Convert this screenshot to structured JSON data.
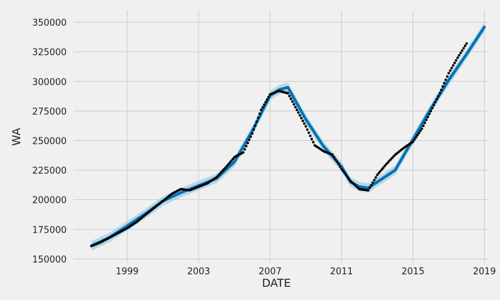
{
  "chart_data": {
    "type": "line",
    "title": "",
    "xlabel": "DATE",
    "ylabel": "WA",
    "xlim": [
      1996.0,
      2019.25
    ],
    "ylim": [
      147000,
      360000
    ],
    "grid": true,
    "legend": "none",
    "x_ticks": [
      {
        "value": 1999,
        "label": "1999"
      },
      {
        "value": 2003,
        "label": "2003"
      },
      {
        "value": 2007,
        "label": "2007"
      },
      {
        "value": 2011,
        "label": "2011"
      },
      {
        "value": 2015,
        "label": "2015"
      },
      {
        "value": 2019,
        "label": "2019"
      }
    ],
    "y_ticks": [
      {
        "value": 150000,
        "label": "150000"
      },
      {
        "value": 175000,
        "label": "175000"
      },
      {
        "value": 200000,
        "label": "200000"
      },
      {
        "value": 225000,
        "label": "225000"
      },
      {
        "value": 250000,
        "label": "250000"
      },
      {
        "value": 275000,
        "label": "275000"
      },
      {
        "value": 300000,
        "label": "300000"
      },
      {
        "value": 325000,
        "label": "325000"
      },
      {
        "value": 350000,
        "label": "350000"
      }
    ],
    "colors": {
      "background": "#f0f0f0",
      "grid": "#cbcbcb",
      "forecast_line": "#0072b2",
      "uncertainty_band": "#a6cfe6",
      "observations": "#000000"
    },
    "series": [
      {
        "kind": "forecast",
        "x": [
          1997.0,
          1998.0,
          1999.0,
          2000.0,
          2001.0,
          2002.0,
          2003.0,
          2004.0,
          2005.0,
          2006.0,
          2006.5,
          2007.0,
          2007.5,
          2008.0,
          2009.0,
          2010.0,
          2011.0,
          2011.5,
          2012.0,
          2012.5,
          2013.0,
          2014.0,
          2015.0,
          2016.0,
          2017.0,
          2018.0,
          2019.0
        ],
        "yhat": [
          161000,
          168000,
          178000,
          188000,
          199000,
          206000,
          212000,
          218000,
          232000,
          258000,
          273000,
          288000,
          293000,
          295000,
          268000,
          245000,
          228000,
          215000,
          211000,
          210000,
          215000,
          225000,
          251000,
          277000,
          301000,
          323000,
          346000
        ],
        "yhat_lower": [
          157000,
          164000,
          174000,
          184000,
          195000,
          202000,
          208000,
          214000,
          228000,
          254000,
          269000,
          284000,
          289000,
          291000,
          264000,
          241000,
          224000,
          211000,
          207000,
          206000,
          211000,
          221000,
          247000,
          273000,
          297000,
          319000,
          342000
        ],
        "yhat_upper": [
          165000,
          172000,
          182000,
          192000,
          203000,
          210000,
          216000,
          222000,
          236000,
          262000,
          277000,
          292000,
          297000,
          299000,
          272000,
          249000,
          232000,
          219000,
          215000,
          214000,
          219000,
          229000,
          255000,
          281000,
          305000,
          327000,
          350000
        ]
      },
      {
        "kind": "observed",
        "x": [
          1997.0,
          1997.5,
          1998.0,
          1998.5,
          1999.0,
          1999.5,
          2000.0,
          2000.5,
          2001.0,
          2001.5,
          2002.0,
          2002.5,
          2003.0,
          2003.5,
          2004.0,
          2004.5,
          2005.0,
          2005.5,
          2006.0,
          2006.5,
          2007.0,
          2007.5,
          2008.0,
          2008.5,
          2009.0,
          2009.5,
          2010.0,
          2010.5,
          2011.0,
          2011.5,
          2012.0,
          2012.5,
          2013.0,
          2013.5,
          2014.0,
          2014.5,
          2015.0,
          2015.5,
          2016.0,
          2016.5,
          2017.0,
          2017.5,
          2018.0
        ],
        "y": [
          161000,
          164000,
          168000,
          172000,
          176000,
          181000,
          187000,
          193000,
          199000,
          205000,
          209000,
          208000,
          211000,
          214000,
          219000,
          227000,
          236000,
          240000,
          256000,
          276000,
          289000,
          292000,
          290000,
          276000,
          262000,
          246000,
          241000,
          238000,
          226000,
          216000,
          209000,
          208000,
          221000,
          230000,
          238000,
          244000,
          249000,
          260000,
          275000,
          290000,
          307000,
          320000,
          332000
        ]
      }
    ]
  }
}
